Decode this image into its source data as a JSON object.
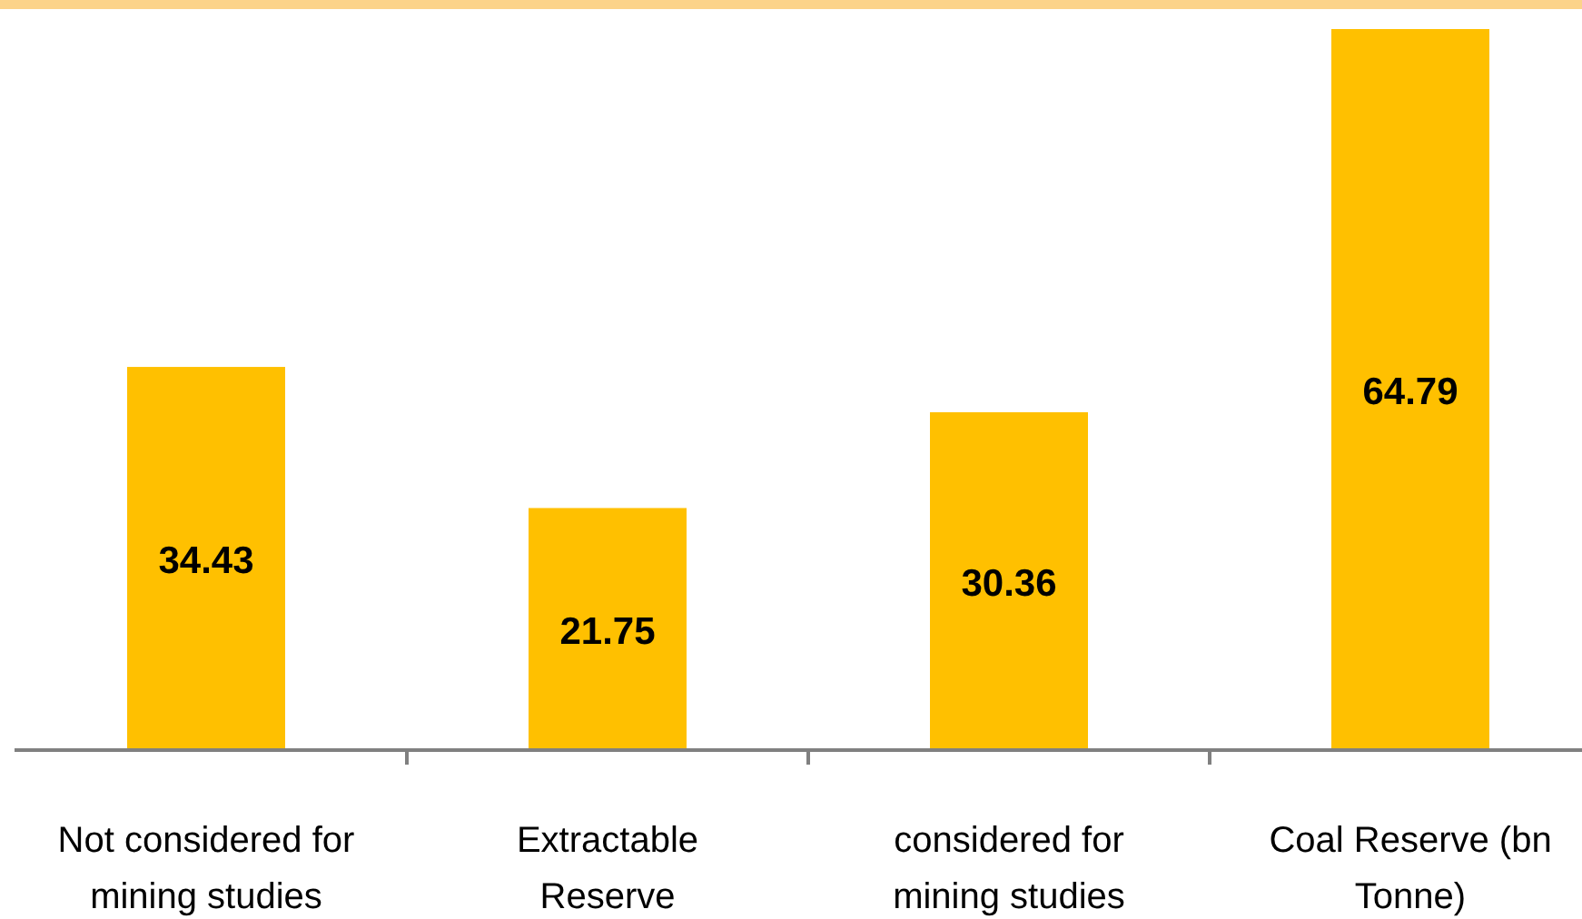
{
  "chart_data": {
    "type": "bar",
    "categories": [
      "Not considered for mining studies",
      "Extractable Reserve",
      "considered for mining studies",
      "Coal Reserve (bn Tonne)"
    ],
    "values": [
      34.43,
      21.75,
      30.36,
      64.79
    ],
    "color": "#ffc000",
    "data_labels": true
  }
}
